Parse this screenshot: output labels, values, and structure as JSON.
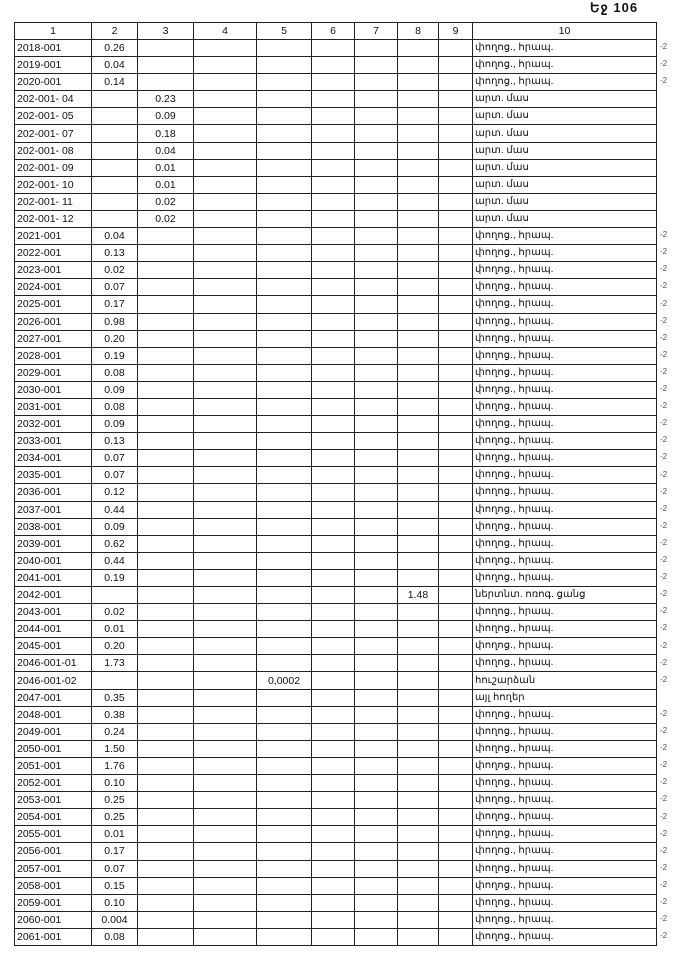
{
  "page_number": "Եջ 106",
  "headers": [
    "1",
    "2",
    "3",
    "4",
    "5",
    "6",
    "7",
    "8",
    "9",
    "10"
  ],
  "rows": [
    [
      "2018-001",
      "0.26",
      "",
      "",
      "",
      "",
      "",
      "",
      "",
      "փողոց., հրապ.",
      "-2"
    ],
    [
      "2019-001",
      "0.04",
      "",
      "",
      "",
      "",
      "",
      "",
      "",
      "փողոց., հրապ.",
      "-2"
    ],
    [
      "2020-001",
      "0.14",
      "",
      "",
      "",
      "",
      "",
      "",
      "",
      "փողոց., հրապ.",
      "-2"
    ],
    [
      "202-001- 04",
      "",
      "0.23",
      "",
      "",
      "",
      "",
      "",
      "",
      "արտ. մաս",
      ""
    ],
    [
      "202-001- 05",
      "",
      "0.09",
      "",
      "",
      "",
      "",
      "",
      "",
      "արտ. մաս",
      ""
    ],
    [
      "202-001- 07",
      "",
      "0.18",
      "",
      "",
      "",
      "",
      "",
      "",
      "արտ. մաս",
      ""
    ],
    [
      "202-001- 08",
      "",
      "0.04",
      "",
      "",
      "",
      "",
      "",
      "",
      "արտ. մաս",
      ""
    ],
    [
      "202-001- 09",
      "",
      "0.01",
      "",
      "",
      "",
      "",
      "",
      "",
      "արտ. մաս",
      ""
    ],
    [
      "202-001- 10",
      "",
      "0.01",
      "",
      "",
      "",
      "",
      "",
      "",
      "արտ. մաս",
      ""
    ],
    [
      "202-001- 11",
      "",
      "0.02",
      "",
      "",
      "",
      "",
      "",
      "",
      "արտ. մաս",
      ""
    ],
    [
      "202-001- 12",
      "",
      "0.02",
      "",
      "",
      "",
      "",
      "",
      "",
      "արտ. մաս",
      ""
    ],
    [
      "2021-001",
      "0.04",
      "",
      "",
      "",
      "",
      "",
      "",
      "",
      "փողոց., հրապ.",
      "-2"
    ],
    [
      "2022-001",
      "0.13",
      "",
      "",
      "",
      "",
      "",
      "",
      "",
      "փողոց., հրապ.",
      "-2"
    ],
    [
      "2023-001",
      "0.02",
      "",
      "",
      "",
      "",
      "",
      "",
      "",
      "փողոց., հրապ.",
      "-2"
    ],
    [
      "2024-001",
      "0.07",
      "",
      "",
      "",
      "",
      "",
      "",
      "",
      "փողոց., հրապ.",
      "-2"
    ],
    [
      "2025-001",
      "0.17",
      "",
      "",
      "",
      "",
      "",
      "",
      "",
      "փողոց., հրապ.",
      "-2"
    ],
    [
      "2026-001",
      "0.98",
      "",
      "",
      "",
      "",
      "",
      "",
      "",
      "փողոց., հրապ.",
      "-2"
    ],
    [
      "2027-001",
      "0.20",
      "",
      "",
      "",
      "",
      "",
      "",
      "",
      "փողոց., հրապ.",
      "-2"
    ],
    [
      "2028-001",
      "0.19",
      "",
      "",
      "",
      "",
      "",
      "",
      "",
      "փողոց., հրապ.",
      "-2"
    ],
    [
      "2029-001",
      "0.08",
      "",
      "",
      "",
      "",
      "",
      "",
      "",
      "փողոց., հրապ.",
      "-2"
    ],
    [
      "2030-001",
      "0.09",
      "",
      "",
      "",
      "",
      "",
      "",
      "",
      "փողոց., հրապ.",
      "-2"
    ],
    [
      "2031-001",
      "0.08",
      "",
      "",
      "",
      "",
      "",
      "",
      "",
      "փողոց., հրապ.",
      "-2"
    ],
    [
      "2032-001",
      "0.09",
      "",
      "",
      "",
      "",
      "",
      "",
      "",
      "փողոց., հրապ.",
      "-2"
    ],
    [
      "2033-001",
      "0.13",
      "",
      "",
      "",
      "",
      "",
      "",
      "",
      "փողոց., հրապ.",
      "-2"
    ],
    [
      "2034-001",
      "0.07",
      "",
      "",
      "",
      "",
      "",
      "",
      "",
      "փողոց., հրապ.",
      "-2"
    ],
    [
      "2035-001",
      "0.07",
      "",
      "",
      "",
      "",
      "",
      "",
      "",
      "փողոց., հրապ.",
      "-2"
    ],
    [
      "2036-001",
      "0.12",
      "",
      "",
      "",
      "",
      "",
      "",
      "",
      "փողոց., հրապ.",
      "-2"
    ],
    [
      "2037-001",
      "0.44",
      "",
      "",
      "",
      "",
      "",
      "",
      "",
      "փողոց., հրապ.",
      "-2"
    ],
    [
      "2038-001",
      "0.09",
      "",
      "",
      "",
      "",
      "",
      "",
      "",
      "փողոց., հրապ.",
      "-2"
    ],
    [
      "2039-001",
      "0.62",
      "",
      "",
      "",
      "",
      "",
      "",
      "",
      "փողոց., հրապ.",
      "-2"
    ],
    [
      "2040-001",
      "0.44",
      "",
      "",
      "",
      "",
      "",
      "",
      "",
      "փողոց., հրապ.",
      "-2"
    ],
    [
      "2041-001",
      "0.19",
      "",
      "",
      "",
      "",
      "",
      "",
      "",
      "փողոց., հրապ.",
      "-2"
    ],
    [
      "2042-001",
      "",
      "",
      "",
      "",
      "",
      "",
      "1.48",
      "",
      "ներտնտ. ոռոգ. ցանց",
      "-2"
    ],
    [
      "2043-001",
      "0.02",
      "",
      "",
      "",
      "",
      "",
      "",
      "",
      "փողոց., հրապ.",
      "-2"
    ],
    [
      "2044-001",
      "0.01",
      "",
      "",
      "",
      "",
      "",
      "",
      "",
      "փողոց., հրապ.",
      "-2"
    ],
    [
      "2045-001",
      "0.20",
      "",
      "",
      "",
      "",
      "",
      "",
      "",
      "փողոց., հրապ.",
      "-2"
    ],
    [
      "2046-001-01",
      "1.73",
      "",
      "",
      "",
      "",
      "",
      "",
      "",
      "փողոց., հրապ.",
      "-2"
    ],
    [
      "2046-001-02",
      "",
      "",
      "",
      "0,0002",
      "",
      "",
      "",
      "",
      "հուշարձան",
      "-2"
    ],
    [
      "2047-001",
      "0.35",
      "",
      "",
      "",
      "",
      "",
      "",
      "",
      "այլ հողեր",
      ""
    ],
    [
      "2048-001",
      "0.38",
      "",
      "",
      "",
      "",
      "",
      "",
      "",
      "փողոց., հրապ.",
      "-2"
    ],
    [
      "2049-001",
      "0.24",
      "",
      "",
      "",
      "",
      "",
      "",
      "",
      "փողոց., հրապ.",
      "-2"
    ],
    [
      "2050-001",
      "1.50",
      "",
      "",
      "",
      "",
      "",
      "",
      "",
      "փողոց., հրապ.",
      "-2"
    ],
    [
      "2051-001",
      "1.76",
      "",
      "",
      "",
      "",
      "",
      "",
      "",
      "փողոց., հրապ.",
      "-2"
    ],
    [
      "2052-001",
      "0.10",
      "",
      "",
      "",
      "",
      "",
      "",
      "",
      "փողոց., հրապ.",
      "-2"
    ],
    [
      "2053-001",
      "0.25",
      "",
      "",
      "",
      "",
      "",
      "",
      "",
      "փողոց., հրապ.",
      "-2"
    ],
    [
      "2054-001",
      "0.25",
      "",
      "",
      "",
      "",
      "",
      "",
      "",
      "փողոց., հրապ.",
      "-2"
    ],
    [
      "2055-001",
      "0.01",
      "",
      "",
      "",
      "",
      "",
      "",
      "",
      "փողոց., հրապ.",
      "-2"
    ],
    [
      "2056-001",
      "0.17",
      "",
      "",
      "",
      "",
      "",
      "",
      "",
      "փողոց., հրապ.",
      "-2"
    ],
    [
      "2057-001",
      "0.07",
      "",
      "",
      "",
      "",
      "",
      "",
      "",
      "փողոց., հրապ.",
      "-2"
    ],
    [
      "2058-001",
      "0.15",
      "",
      "",
      "",
      "",
      "",
      "",
      "",
      "փողոց., հրապ.",
      "-2"
    ],
    [
      "2059-001",
      "0.10",
      "",
      "",
      "",
      "",
      "",
      "",
      "",
      "փողոց., հրապ.",
      "-2"
    ],
    [
      "2060-001",
      "0.004",
      "",
      "",
      "",
      "",
      "",
      "",
      "",
      "փողոց., հրապ.",
      "-2"
    ],
    [
      "2061-001",
      "0.08",
      "",
      "",
      "",
      "",
      "",
      "",
      "",
      "փողոց., հրապ.",
      "-2"
    ]
  ]
}
